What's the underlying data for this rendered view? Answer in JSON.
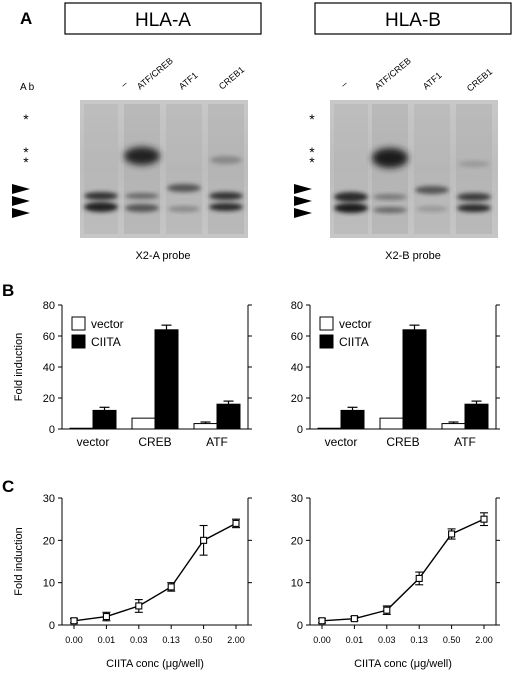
{
  "panels": {
    "a": "A",
    "b": "B",
    "c": "C"
  },
  "gels": [
    {
      "title": "HLA-A",
      "probe": "X2-A probe",
      "ab_label": "Ab",
      "lanes": [
        "–",
        "ATF/CREB",
        "ATF1",
        "CREB1"
      ]
    },
    {
      "title": "HLA-B",
      "probe": "X2-B probe",
      "lanes": [
        "–",
        "ATF/CREB",
        "ATF1",
        "CREB1"
      ]
    }
  ],
  "markers": {
    "single": "*",
    "double": "*\n*"
  },
  "chart_data": [
    {
      "type": "bar",
      "panel": "B",
      "ylabel": "Fold induction",
      "ylim": [
        0,
        80
      ],
      "yticks": [
        0,
        20,
        40,
        60,
        80
      ],
      "categories": [
        "vector",
        "CREB",
        "ATF"
      ],
      "legend_position": "top-left",
      "series": [
        {
          "name": "vector",
          "color": "#ffffff",
          "values": [
            0.5,
            7,
            3.5
          ],
          "errors": [
            0,
            0,
            1
          ]
        },
        {
          "name": "CIITA",
          "color": "#000000",
          "values": [
            12,
            64,
            16
          ],
          "errors": [
            2,
            3,
            2
          ]
        }
      ]
    },
    {
      "type": "bar",
      "panel": "B",
      "ylim": [
        0,
        80
      ],
      "yticks": [
        0,
        20,
        40,
        60,
        80
      ],
      "categories": [
        "vector",
        "CREB",
        "ATF"
      ],
      "legend_position": "top-left",
      "series": [
        {
          "name": "vector",
          "color": "#ffffff",
          "values": [
            0.5,
            7,
            3.5
          ],
          "errors": [
            0,
            0,
            1
          ]
        },
        {
          "name": "CIITA",
          "color": "#000000",
          "values": [
            12,
            64,
            16
          ],
          "errors": [
            2,
            3,
            2
          ]
        }
      ]
    },
    {
      "type": "line",
      "panel": "C",
      "ylabel": "Fold induction",
      "xlabel": "CIITA conc (μg/well)",
      "ylim": [
        0,
        30
      ],
      "yticks": [
        0,
        10,
        20,
        30
      ],
      "x": [
        "0.00",
        "0.01",
        "0.03",
        "0.13",
        "0.50",
        "2.00"
      ],
      "series": [
        {
          "values": [
            1,
            2,
            4.5,
            9,
            20,
            24
          ],
          "errors": [
            0.5,
            1,
            1.5,
            1,
            3.5,
            1
          ]
        }
      ]
    },
    {
      "type": "line",
      "panel": "C",
      "xlabel": "CIITA conc (μg/well)",
      "ylim": [
        0,
        30
      ],
      "yticks": [
        0,
        10,
        20,
        30
      ],
      "x": [
        "0.00",
        "0.01",
        "0.03",
        "0.13",
        "0.50",
        "2.00"
      ],
      "series": [
        {
          "values": [
            1,
            1.5,
            3.5,
            11,
            21.5,
            25
          ],
          "errors": [
            0.5,
            0.5,
            1,
            1.5,
            1.2,
            1.5
          ]
        }
      ]
    }
  ]
}
